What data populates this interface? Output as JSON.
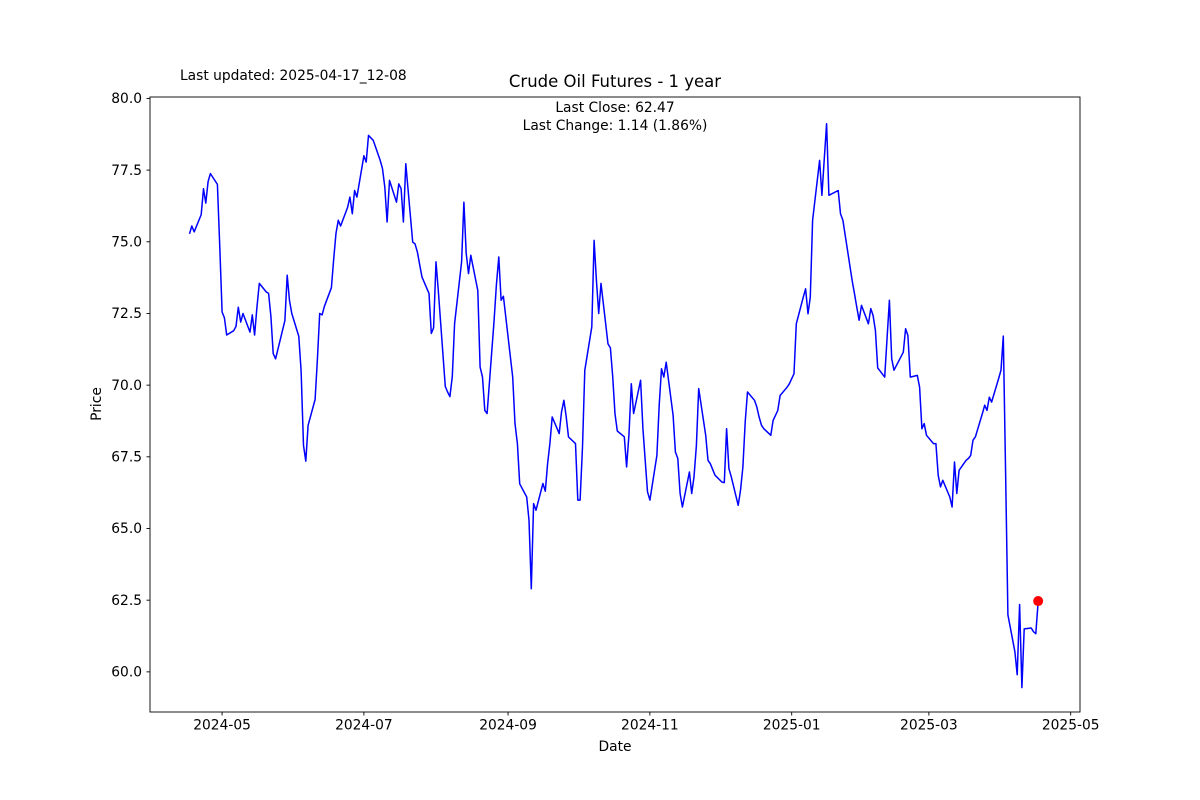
{
  "header": {
    "last_updated": "Last updated: 2025-04-17_12-08"
  },
  "chart_data": {
    "type": "line",
    "title": "Crude Oil Futures - 1 year",
    "annotation_line1": "Last Close: 62.47",
    "annotation_line2": "Last Change: 1.14 (1.86%)",
    "xlabel": "Date",
    "ylabel": "Price",
    "last_close": 62.47,
    "last_change": 1.14,
    "last_change_pct": "1.86%",
    "grid": false,
    "legend": null,
    "line_color": "#0000ff",
    "marker_color": "#ff0000",
    "xlim": [
      "2024-03-31",
      "2025-05-05"
    ],
    "ylim": [
      58.6,
      80.05
    ],
    "x_ticks": [
      {
        "label": "2024-05",
        "date": "2024-05-01"
      },
      {
        "label": "2024-07",
        "date": "2024-07-01"
      },
      {
        "label": "2024-09",
        "date": "2024-09-01"
      },
      {
        "label": "2024-11",
        "date": "2024-11-01"
      },
      {
        "label": "2025-01",
        "date": "2025-01-01"
      },
      {
        "label": "2025-03",
        "date": "2025-03-01"
      },
      {
        "label": "2025-05",
        "date": "2025-05-01"
      }
    ],
    "y_ticks": [
      {
        "label": "60.0",
        "value": 60.0
      },
      {
        "label": "62.5",
        "value": 62.5
      },
      {
        "label": "65.0",
        "value": 65.0
      },
      {
        "label": "67.5",
        "value": 67.5
      },
      {
        "label": "70.0",
        "value": 70.0
      },
      {
        "label": "72.5",
        "value": 72.5
      },
      {
        "label": "75.0",
        "value": 75.0
      },
      {
        "label": "77.5",
        "value": 77.5
      },
      {
        "label": "80.0",
        "value": 80.0
      }
    ],
    "last_point": {
      "date": "2025-04-17",
      "price": 62.47
    },
    "series": [
      {
        "name": "Close",
        "color": "#0000ff",
        "points": [
          [
            "2024-04-17",
            75.28
          ],
          [
            "2024-04-18",
            75.55
          ],
          [
            "2024-04-19",
            75.35
          ],
          [
            "2024-04-22",
            75.95
          ],
          [
            "2024-04-23",
            76.85
          ],
          [
            "2024-04-24",
            76.35
          ],
          [
            "2024-04-25",
            77.1
          ],
          [
            "2024-04-26",
            77.38
          ],
          [
            "2024-04-29",
            77.0
          ],
          [
            "2024-04-30",
            74.8
          ],
          [
            "2024-05-01",
            72.55
          ],
          [
            "2024-05-02",
            72.35
          ],
          [
            "2024-05-03",
            71.75
          ],
          [
            "2024-05-06",
            71.9
          ],
          [
            "2024-05-07",
            72.05
          ],
          [
            "2024-05-08",
            72.72
          ],
          [
            "2024-05-09",
            72.2
          ],
          [
            "2024-05-10",
            72.5
          ],
          [
            "2024-05-13",
            71.85
          ],
          [
            "2024-05-14",
            72.45
          ],
          [
            "2024-05-15",
            71.75
          ],
          [
            "2024-05-16",
            72.7
          ],
          [
            "2024-05-17",
            73.55
          ],
          [
            "2024-05-20",
            73.25
          ],
          [
            "2024-05-21",
            73.2
          ],
          [
            "2024-05-22",
            72.4
          ],
          [
            "2024-05-23",
            71.1
          ],
          [
            "2024-05-24",
            70.92
          ],
          [
            "2024-05-28",
            72.25
          ],
          [
            "2024-05-29",
            73.83
          ],
          [
            "2024-05-30",
            72.95
          ],
          [
            "2024-05-31",
            72.5
          ],
          [
            "2024-06-03",
            71.7
          ],
          [
            "2024-06-04",
            70.5
          ],
          [
            "2024-06-05",
            67.9
          ],
          [
            "2024-06-06",
            67.35
          ],
          [
            "2024-06-07",
            68.6
          ],
          [
            "2024-06-10",
            69.5
          ],
          [
            "2024-06-11",
            70.9
          ],
          [
            "2024-06-12",
            72.5
          ],
          [
            "2024-06-13",
            72.45
          ],
          [
            "2024-06-14",
            72.75
          ],
          [
            "2024-06-17",
            73.4
          ],
          [
            "2024-06-18",
            74.4
          ],
          [
            "2024-06-19",
            75.3
          ],
          [
            "2024-06-20",
            75.75
          ],
          [
            "2024-06-21",
            75.55
          ],
          [
            "2024-06-24",
            76.2
          ],
          [
            "2024-06-25",
            76.56
          ],
          [
            "2024-06-26",
            75.98
          ],
          [
            "2024-06-27",
            76.79
          ],
          [
            "2024-06-28",
            76.56
          ],
          [
            "2024-07-01",
            78.0
          ],
          [
            "2024-07-02",
            77.78
          ],
          [
            "2024-07-03",
            78.71
          ],
          [
            "2024-07-05",
            78.54
          ],
          [
            "2024-07-08",
            77.84
          ],
          [
            "2024-07-09",
            77.55
          ],
          [
            "2024-07-10",
            76.91
          ],
          [
            "2024-07-11",
            75.69
          ],
          [
            "2024-07-12",
            77.14
          ],
          [
            "2024-07-15",
            76.38
          ],
          [
            "2024-07-16",
            77.02
          ],
          [
            "2024-07-17",
            76.85
          ],
          [
            "2024-07-18",
            75.69
          ],
          [
            "2024-07-19",
            77.72
          ],
          [
            "2024-07-22",
            74.99
          ],
          [
            "2024-07-23",
            74.93
          ],
          [
            "2024-07-24",
            74.64
          ],
          [
            "2024-07-25",
            74.2
          ],
          [
            "2024-07-26",
            73.77
          ],
          [
            "2024-07-29",
            73.2
          ],
          [
            "2024-07-30",
            71.8
          ],
          [
            "2024-07-31",
            72.0
          ],
          [
            "2024-08-01",
            74.3
          ],
          [
            "2024-08-02",
            73.3
          ],
          [
            "2024-08-05",
            69.95
          ],
          [
            "2024-08-06",
            69.76
          ],
          [
            "2024-08-07",
            69.6
          ],
          [
            "2024-08-08",
            70.3
          ],
          [
            "2024-08-09",
            72.15
          ],
          [
            "2024-08-12",
            74.3
          ],
          [
            "2024-08-13",
            76.38
          ],
          [
            "2024-08-14",
            74.6
          ],
          [
            "2024-08-15",
            73.89
          ],
          [
            "2024-08-16",
            74.53
          ],
          [
            "2024-08-19",
            73.3
          ],
          [
            "2024-08-20",
            70.63
          ],
          [
            "2024-08-21",
            70.28
          ],
          [
            "2024-08-22",
            69.12
          ],
          [
            "2024-08-23",
            69.01
          ],
          [
            "2024-08-26",
            72.26
          ],
          [
            "2024-08-27",
            73.5
          ],
          [
            "2024-08-28",
            74.47
          ],
          [
            "2024-08-29",
            72.96
          ],
          [
            "2024-08-30",
            73.1
          ],
          [
            "2024-09-03",
            70.28
          ],
          [
            "2024-09-04",
            68.66
          ],
          [
            "2024-09-05",
            67.96
          ],
          [
            "2024-09-06",
            66.56
          ],
          [
            "2024-09-09",
            66.1
          ],
          [
            "2024-09-10",
            65.29
          ],
          [
            "2024-09-11",
            62.9
          ],
          [
            "2024-09-12",
            65.87
          ],
          [
            "2024-09-13",
            65.64
          ],
          [
            "2024-09-16",
            66.57
          ],
          [
            "2024-09-17",
            66.3
          ],
          [
            "2024-09-18",
            67.26
          ],
          [
            "2024-09-19",
            67.96
          ],
          [
            "2024-09-20",
            68.89
          ],
          [
            "2024-09-23",
            68.31
          ],
          [
            "2024-09-24",
            69.06
          ],
          [
            "2024-09-25",
            69.47
          ],
          [
            "2024-09-26",
            68.9
          ],
          [
            "2024-09-27",
            68.19
          ],
          [
            "2024-09-30",
            67.96
          ],
          [
            "2024-10-01",
            65.99
          ],
          [
            "2024-10-02",
            65.99
          ],
          [
            "2024-10-03",
            67.84
          ],
          [
            "2024-10-04",
            70.52
          ],
          [
            "2024-10-07",
            72.03
          ],
          [
            "2024-10-08",
            75.05
          ],
          [
            "2024-10-09",
            73.66
          ],
          [
            "2024-10-10",
            72.5
          ],
          [
            "2024-10-11",
            73.55
          ],
          [
            "2024-10-14",
            71.44
          ],
          [
            "2024-10-15",
            71.3
          ],
          [
            "2024-10-16",
            70.3
          ],
          [
            "2024-10-17",
            69.0
          ],
          [
            "2024-10-18",
            68.4
          ],
          [
            "2024-10-21",
            68.2
          ],
          [
            "2024-10-22",
            67.15
          ],
          [
            "2024-10-23",
            68.3
          ],
          [
            "2024-10-24",
            70.05
          ],
          [
            "2024-10-25",
            69.01
          ],
          [
            "2024-10-28",
            70.17
          ],
          [
            "2024-10-29",
            68.5
          ],
          [
            "2024-10-30",
            67.38
          ],
          [
            "2024-10-31",
            66.28
          ],
          [
            "2024-11-01",
            65.99
          ],
          [
            "2024-11-04",
            67.55
          ],
          [
            "2024-11-05",
            69.3
          ],
          [
            "2024-11-06",
            70.57
          ],
          [
            "2024-11-07",
            70.28
          ],
          [
            "2024-11-08",
            70.8
          ],
          [
            "2024-11-11",
            68.95
          ],
          [
            "2024-11-12",
            67.67
          ],
          [
            "2024-11-13",
            67.44
          ],
          [
            "2024-11-14",
            66.22
          ],
          [
            "2024-11-15",
            65.75
          ],
          [
            "2024-11-18",
            66.97
          ],
          [
            "2024-11-19",
            66.22
          ],
          [
            "2024-11-20",
            66.8
          ],
          [
            "2024-11-21",
            67.9
          ],
          [
            "2024-11-22",
            69.88
          ],
          [
            "2024-11-25",
            68.25
          ],
          [
            "2024-11-26",
            67.38
          ],
          [
            "2024-11-27",
            67.26
          ],
          [
            "2024-11-29",
            66.86
          ],
          [
            "2024-12-02",
            66.62
          ],
          [
            "2024-12-03",
            66.6
          ],
          [
            "2024-12-04",
            68.48
          ],
          [
            "2024-12-05",
            67.09
          ],
          [
            "2024-12-06",
            66.8
          ],
          [
            "2024-12-09",
            65.81
          ],
          [
            "2024-12-10",
            66.33
          ],
          [
            "2024-12-11",
            67.15
          ],
          [
            "2024-12-12",
            68.71
          ],
          [
            "2024-12-13",
            69.76
          ],
          [
            "2024-12-16",
            69.47
          ],
          [
            "2024-12-17",
            69.24
          ],
          [
            "2024-12-18",
            68.89
          ],
          [
            "2024-12-19",
            68.6
          ],
          [
            "2024-12-20",
            68.48
          ],
          [
            "2024-12-23",
            68.25
          ],
          [
            "2024-12-24",
            68.77
          ],
          [
            "2024-12-26",
            69.12
          ],
          [
            "2024-12-27",
            69.64
          ],
          [
            "2024-12-30",
            69.93
          ],
          [
            "2024-12-31",
            70.05
          ],
          [
            "2025-01-02",
            70.4
          ],
          [
            "2025-01-03",
            72.14
          ],
          [
            "2025-01-06",
            73.07
          ],
          [
            "2025-01-07",
            73.36
          ],
          [
            "2025-01-08",
            72.49
          ],
          [
            "2025-01-09",
            73.07
          ],
          [
            "2025-01-10",
            75.75
          ],
          [
            "2025-01-13",
            77.84
          ],
          [
            "2025-01-14",
            76.62
          ],
          [
            "2025-01-15",
            77.9
          ],
          [
            "2025-01-16",
            79.12
          ],
          [
            "2025-01-17",
            76.62
          ],
          [
            "2025-01-21",
            76.79
          ],
          [
            "2025-01-22",
            75.98
          ],
          [
            "2025-01-23",
            75.75
          ],
          [
            "2025-01-24",
            75.23
          ],
          [
            "2025-01-27",
            73.66
          ],
          [
            "2025-01-28",
            73.19
          ],
          [
            "2025-01-29",
            72.72
          ],
          [
            "2025-01-30",
            72.26
          ],
          [
            "2025-01-31",
            72.78
          ],
          [
            "2025-02-03",
            72.14
          ],
          [
            "2025-02-04",
            72.67
          ],
          [
            "2025-02-05",
            72.43
          ],
          [
            "2025-02-06",
            71.91
          ],
          [
            "2025-02-07",
            70.6
          ],
          [
            "2025-02-10",
            70.28
          ],
          [
            "2025-02-11",
            71.6
          ],
          [
            "2025-02-12",
            72.96
          ],
          [
            "2025-02-13",
            70.92
          ],
          [
            "2025-02-14",
            70.52
          ],
          [
            "2025-02-18",
            71.15
          ],
          [
            "2025-02-19",
            71.97
          ],
          [
            "2025-02-20",
            71.73
          ],
          [
            "2025-02-21",
            70.28
          ],
          [
            "2025-02-24",
            70.34
          ],
          [
            "2025-02-25",
            69.93
          ],
          [
            "2025-02-26",
            68.48
          ],
          [
            "2025-02-27",
            68.66
          ],
          [
            "2025-02-28",
            68.25
          ],
          [
            "2025-03-03",
            67.96
          ],
          [
            "2025-03-04",
            67.96
          ],
          [
            "2025-03-05",
            66.86
          ],
          [
            "2025-03-06",
            66.45
          ],
          [
            "2025-03-07",
            66.68
          ],
          [
            "2025-03-10",
            66.1
          ],
          [
            "2025-03-11",
            65.75
          ],
          [
            "2025-03-12",
            67.32
          ],
          [
            "2025-03-13",
            66.22
          ],
          [
            "2025-03-14",
            67.03
          ],
          [
            "2025-03-17",
            67.38
          ],
          [
            "2025-03-18",
            67.44
          ],
          [
            "2025-03-19",
            67.55
          ],
          [
            "2025-03-20",
            68.08
          ],
          [
            "2025-03-21",
            68.2
          ],
          [
            "2025-03-24",
            69.01
          ],
          [
            "2025-03-25",
            69.3
          ],
          [
            "2025-03-26",
            69.12
          ],
          [
            "2025-03-27",
            69.58
          ],
          [
            "2025-03-28",
            69.41
          ],
          [
            "2025-03-31",
            70.23
          ],
          [
            "2025-04-01",
            70.52
          ],
          [
            "2025-04-02",
            71.71
          ],
          [
            "2025-04-03",
            66.95
          ],
          [
            "2025-04-04",
            61.99
          ],
          [
            "2025-04-07",
            60.7
          ],
          [
            "2025-04-08",
            59.9
          ],
          [
            "2025-04-09",
            62.35
          ],
          [
            "2025-04-10",
            59.45
          ],
          [
            "2025-04-11",
            61.5
          ],
          [
            "2025-04-14",
            61.53
          ],
          [
            "2025-04-15",
            61.4
          ],
          [
            "2025-04-16",
            61.33
          ],
          [
            "2025-04-17",
            62.47
          ]
        ]
      }
    ]
  }
}
